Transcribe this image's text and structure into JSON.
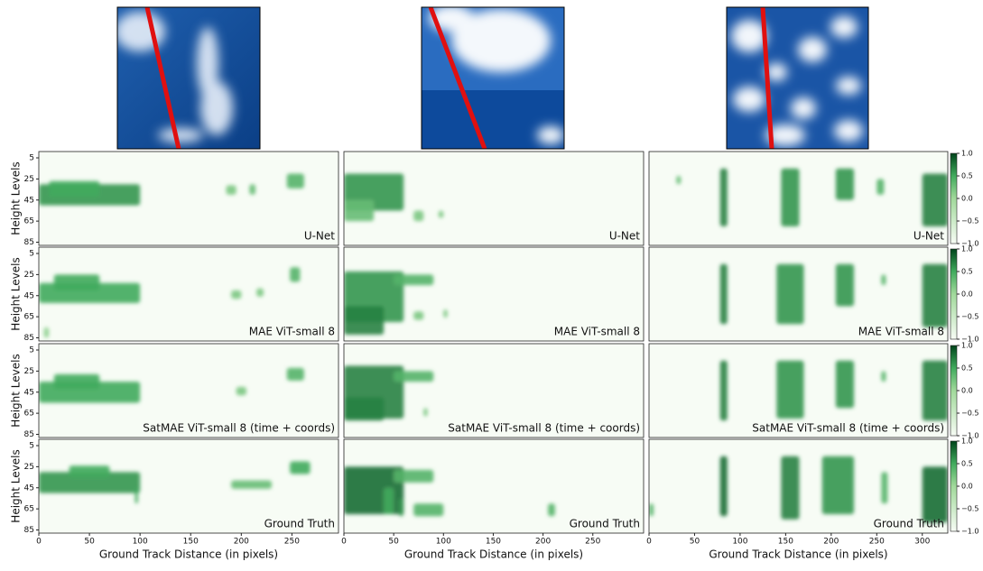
{
  "chart_data": {
    "type": "heatmap",
    "y_label": "Height Levels",
    "x_label": "Ground Track Distance (in pixels)",
    "rows": [
      "U-Net",
      "MAE ViT-small 8",
      "SatMAE ViT-small 8 (time + coords)",
      "Ground Truth"
    ],
    "ylim": [
      -1,
      88
    ],
    "y_inverted": true,
    "yticks": [
      5,
      25,
      45,
      65,
      85
    ],
    "colorbar": {
      "lim": [
        -1,
        1
      ],
      "ticks": [
        {
          "value": 1,
          "label": "1.0"
        },
        {
          "value": 0.5,
          "label": "0.5"
        },
        {
          "value": 0,
          "label": "0.0"
        },
        {
          "value": -0.5,
          "label": "−0.5"
        },
        {
          "value": -1,
          "label": "−1.0"
        }
      ]
    },
    "columns": [
      {
        "xlim": [
          0,
          296
        ],
        "xticks": [
          0,
          50,
          100,
          150,
          200,
          250
        ],
        "blobs": [
          [
            [
              0,
              100,
              30,
              50,
              0.6
            ],
            [
              10,
              60,
              27,
              42,
              0.5
            ],
            [
              185,
              195,
              31,
              40,
              0.2
            ],
            [
              208,
              214,
              30,
              40,
              0.3
            ],
            [
              245,
              262,
              20,
              34,
              0.4
            ]
          ],
          [
            [
              0,
              100,
              33,
              52,
              0.5
            ],
            [
              15,
              60,
              25,
              40,
              0.5
            ],
            [
              190,
              200,
              40,
              48,
              0.2
            ],
            [
              215,
              222,
              38,
              46,
              0.2
            ],
            [
              248,
              258,
              18,
              32,
              0.4
            ],
            [
              5,
              10,
              75,
              85,
              0.1
            ]
          ],
          [
            [
              0,
              100,
              35,
              55,
              0.5
            ],
            [
              15,
              60,
              28,
              42,
              0.5
            ],
            [
              195,
              205,
              40,
              48,
              0.2
            ],
            [
              245,
              262,
              22,
              34,
              0.4
            ]
          ],
          [
            [
              0,
              100,
              30,
              50,
              0.6
            ],
            [
              30,
              70,
              24,
              35,
              0.5
            ],
            [
              95,
              98,
              45,
              60,
              0.5
            ],
            [
              190,
              230,
              38,
              46,
              0.3
            ],
            [
              248,
              268,
              20,
              32,
              0.5
            ]
          ]
        ]
      },
      {
        "xlim": [
          0,
          301
        ],
        "xticks": [
          0,
          50,
          100,
          150,
          200,
          250
        ],
        "blobs": [
          [
            [
              0,
              60,
              20,
              55,
              0.6
            ],
            [
              0,
              30,
              45,
              65,
              0.3
            ],
            [
              70,
              80,
              55,
              65,
              0.2
            ],
            [
              95,
              100,
              55,
              62,
              0.2
            ]
          ],
          [
            [
              0,
              60,
              22,
              70,
              0.6
            ],
            [
              0,
              40,
              55,
              82,
              0.7
            ],
            [
              50,
              90,
              25,
              35,
              0.4
            ],
            [
              70,
              80,
              60,
              68,
              0.2
            ],
            [
              100,
              104,
              58,
              66,
              0.2
            ]
          ],
          [
            [
              0,
              60,
              20,
              70,
              0.7
            ],
            [
              0,
              40,
              50,
              72,
              0.7
            ],
            [
              50,
              90,
              25,
              35,
              0.4
            ],
            [
              80,
              84,
              60,
              68,
              0.2
            ]
          ],
          [
            [
              0,
              60,
              25,
              70,
              0.8
            ],
            [
              40,
              50,
              45,
              70,
              0.5
            ],
            [
              50,
              90,
              28,
              40,
              0.4
            ],
            [
              55,
              60,
              55,
              72,
              0.6
            ],
            [
              70,
              100,
              60,
              72,
              0.4
            ],
            [
              205,
              212,
              60,
              72,
              0.4
            ]
          ]
        ]
      },
      {
        "xlim": [
          0,
          328
        ],
        "xticks": [
          0,
          50,
          100,
          150,
          200,
          250,
          300
        ],
        "blobs": [
          [
            [
              30,
              35,
              22,
              30,
              0.3
            ],
            [
              78,
              86,
              15,
              70,
              0.7
            ],
            [
              145,
              165,
              15,
              70,
              0.6
            ],
            [
              205,
              225,
              15,
              45,
              0.6
            ],
            [
              250,
              258,
              25,
              40,
              0.4
            ],
            [
              300,
              328,
              20,
              70,
              0.7
            ]
          ],
          [
            [
              78,
              86,
              15,
              72,
              0.7
            ],
            [
              140,
              170,
              15,
              72,
              0.6
            ],
            [
              205,
              225,
              15,
              55,
              0.6
            ],
            [
              255,
              260,
              25,
              35,
              0.4
            ],
            [
              300,
              328,
              15,
              75,
              0.7
            ]
          ],
          [
            [
              78,
              86,
              15,
              72,
              0.7
            ],
            [
              140,
              170,
              15,
              70,
              0.6
            ],
            [
              205,
              225,
              15,
              60,
              0.6
            ],
            [
              255,
              260,
              25,
              35,
              0.4
            ],
            [
              300,
              328,
              15,
              72,
              0.7
            ]
          ],
          [
            [
              0,
              5,
              60,
              72,
              0.4
            ],
            [
              78,
              86,
              15,
              72,
              0.8
            ],
            [
              145,
              165,
              15,
              75,
              0.7
            ],
            [
              190,
              225,
              15,
              70,
              0.6
            ],
            [
              255,
              262,
              30,
              60,
              0.4
            ],
            [
              300,
              328,
              25,
              78,
              0.8
            ]
          ]
        ]
      }
    ]
  }
}
